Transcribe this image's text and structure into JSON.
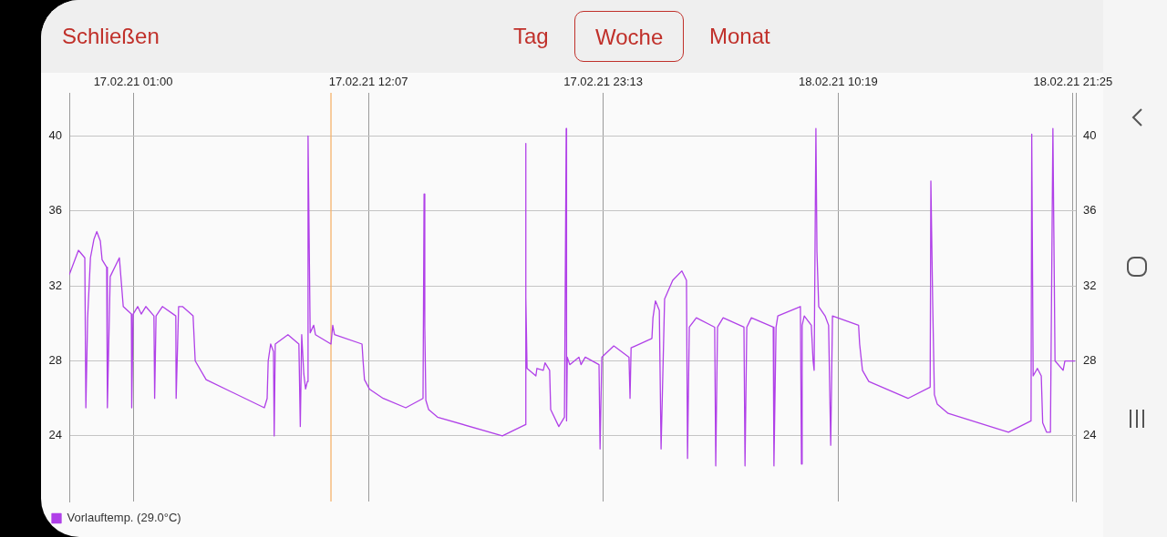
{
  "chart_data": {
    "type": "line",
    "annotations": [
      "Schließen",
      "Tag",
      "Woche",
      "Monat"
    ],
    "xlim": [
      "--02-16T21:59",
      "--02-18T21:33"
    ],
    "xticks": [
      {
        "value": "--02-17T01:00",
        "label": "17.02.21 01:00"
      },
      {
        "value": "--02-17T12:07",
        "label": "17.02.21 12:07"
      },
      {
        "value": "--02-17T23:13",
        "label": "17.02.21 23:13"
      },
      {
        "value": "--02-18T10:19",
        "label": "18.02.21 10:19"
      },
      {
        "value": "--02-18T21:25",
        "label": "18.02.21 21:25"
      }
    ],
    "ylim": [
      20.5,
      42.3
    ],
    "yticks": [
      24,
      28,
      32,
      36,
      40
    ],
    "y2lim": [
      20.5,
      42.3
    ],
    "y2ticks": [
      24,
      28,
      32,
      36,
      40
    ],
    "grid": true,
    "legend": "bottom left",
    "marker": "none",
    "line_style": "solid",
    "ref_lines": [
      {
        "axis": "x",
        "value": "--02-17T10:21",
        "color": "#f5b26b"
      }
    ],
    "series": [
      {
        "name": "Vorlauftemp. (29.0°C)",
        "color": "#b040e8",
        "x": [
          "--02-16T21:59",
          "--02-16T22:25",
          "--02-16T22:43",
          "--02-16T22:46",
          "--02-16T22:51",
          "--02-16T22:59",
          "--02-16T23:09",
          "--02-16T23:17",
          "--02-16T23:27",
          "--02-16T23:32",
          "--02-16T23:45",
          "--02-16T23:47",
          "--02-16T23:55",
          "--02-17T00:21",
          "--02-17T00:32",
          "--02-17T00:55",
          "--02-17T00:56",
          "--02-17T01:00",
          "--02-17T01:13",
          "--02-17T01:23",
          "--02-17T01:36",
          "--02-17T01:59",
          "--02-17T02:01",
          "--02-17T02:05",
          "--02-17T02:23",
          "--02-17T03:01",
          "--02-17T03:02",
          "--02-17T03:09",
          "--02-17T03:20",
          "--02-17T03:50",
          "--02-17T03:56",
          "--02-17T04:27",
          "--02-17T07:12",
          "--02-17T07:20",
          "--02-17T07:23",
          "--02-17T07:30",
          "--02-17T07:38",
          "--02-17T07:40",
          "--02-17T07:43",
          "--02-17T08:19",
          "--02-17T08:50",
          "--02-17T08:54",
          "--02-17T08:58",
          "--02-17T09:04",
          "--02-17T09:09",
          "--02-17T09:14",
          "--02-17T09:16",
          "--02-17T09:22",
          "--02-17T09:32",
          "--02-17T09:37",
          "--02-17T10:21",
          "--02-17T10:26",
          "--02-17T10:31",
          "--02-17T11:49",
          "--02-17T11:52",
          "--02-17T11:56",
          "--02-17T12:10",
          "--02-17T12:49",
          "--02-17T13:53",
          "--02-17T14:42",
          "--02-17T14:45",
          "--02-17T14:47",
          "--02-17T14:50",
          "--02-17T14:58",
          "--02-17T15:23",
          "--02-17T18:27",
          "--02-17T19:32",
          "--02-17T19:33",
          "--02-17T19:34",
          "--02-17T19:37",
          "--02-17T20:02",
          "--02-17T20:05",
          "--02-17T20:23",
          "--02-17T20:28",
          "--02-17T20:41",
          "--02-17T20:44",
          "--02-17T21:07",
          "--02-17T21:23",
          "--02-17T21:28",
          "--02-17T21:29",
          "--02-17T21:31",
          "--02-17T21:38",
          "--02-17T22:04",
          "--02-17T22:10",
          "--02-17T22:22",
          "--02-17T23:01",
          "--02-17T23:04",
          "--02-17T23:09",
          "--02-17T23:43",
          "--02-18T00:26",
          "--02-18T00:29",
          "--02-18T00:32",
          "--02-18T00:44",
          "--02-18T01:31",
          "--02-18T01:34",
          "--02-18T01:41",
          "--02-18T01:52",
          "--02-18T01:57",
          "--02-18T02:07",
          "--02-18T02:30",
          "--02-18T02:56",
          "--02-18T03:09",
          "--02-18T03:12",
          "--02-18T03:17",
          "--02-18T03:37",
          "--02-18T04:29",
          "--02-18T04:32",
          "--02-18T04:37",
          "--02-18T04:53",
          "--02-18T05:52",
          "--02-18T05:55",
          "--02-18T06:00",
          "--02-18T06:13",
          "--02-18T07:15",
          "--02-18T07:17",
          "--02-18T07:23",
          "--02-18T07:28",
          "--02-18T08:32",
          "--02-18T08:35",
          "--02-18T08:37",
          "--02-18T08:43",
          "--02-18T09:03",
          "--02-18T09:08",
          "--02-18T09:11",
          "--02-18T09:16",
          "--02-18T09:19",
          "--02-18T09:24",
          "--02-18T09:42",
          "--02-18T09:52",
          "--02-18T09:58",
          "--02-18T10:03",
          "--02-18T11:17",
          "--02-18T11:20",
          "--02-18T11:28",
          "--02-18T11:46",
          "--02-18T13:37",
          "--02-18T14:40",
          "--02-18T14:42",
          "--02-18T14:47",
          "--02-18T14:52",
          "--02-18T15:00",
          "--02-18T15:31",
          "--02-18T18:22",
          "--02-18T19:26",
          "--02-18T19:28",
          "--02-18T19:32",
          "--02-18T19:44",
          "--02-18T19:55",
          "--02-18T19:59",
          "--02-18T20:10",
          "--02-18T20:21",
          "--02-18T20:28",
          "--02-18T20:34",
          "--02-18T20:57",
          "--02-18T21:02",
          "--02-18T21:31"
        ],
        "values": [
          32.6,
          33.9,
          33.5,
          25.5,
          30.3,
          33.5,
          34.5,
          34.9,
          34.4,
          33.4,
          33.0,
          25.5,
          32.5,
          33.5,
          30.9,
          30.5,
          25.5,
          30.5,
          30.9,
          30.5,
          30.9,
          30.4,
          26.0,
          30.4,
          30.9,
          30.4,
          26.0,
          30.9,
          30.9,
          30.4,
          28.0,
          27.0,
          25.5,
          26.0,
          28.0,
          28.9,
          28.5,
          24.0,
          28.9,
          29.4,
          28.9,
          24.5,
          29.4,
          27.3,
          26.5,
          26.9,
          40.0,
          29.5,
          29.9,
          29.4,
          28.9,
          29.9,
          29.4,
          28.9,
          28.0,
          27.0,
          26.5,
          26.0,
          25.5,
          26.0,
          36.9,
          29.8,
          25.9,
          25.4,
          25.0,
          24.0,
          24.6,
          39.6,
          31.4,
          27.6,
          27.2,
          27.6,
          27.5,
          27.9,
          27.5,
          25.4,
          24.5,
          25.0,
          40.4,
          24.8,
          28.2,
          27.8,
          28.2,
          27.8,
          28.2,
          27.8,
          23.3,
          28.2,
          28.8,
          28.2,
          26.0,
          28.7,
          28.8,
          29.2,
          30.3,
          31.2,
          30.7,
          23.3,
          31.3,
          32.3,
          32.8,
          32.3,
          22.8,
          29.8,
          30.3,
          29.8,
          22.4,
          29.8,
          30.3,
          29.8,
          22.4,
          29.8,
          30.3,
          29.8,
          22.4,
          29.8,
          30.4,
          30.9,
          22.5,
          29.9,
          30.4,
          29.9,
          28.0,
          27.5,
          40.4,
          33.8,
          30.9,
          30.4,
          29.9,
          23.5,
          30.4,
          29.9,
          28.9,
          27.5,
          26.9,
          26.0,
          26.6,
          37.6,
          31.2,
          26.2,
          25.7,
          25.2,
          24.2,
          24.8,
          40.1,
          27.2,
          27.6,
          27.2,
          24.7,
          24.2,
          24.2,
          40.4,
          28.0,
          27.5,
          28.0,
          28.0
        ]
      }
    ]
  }
}
